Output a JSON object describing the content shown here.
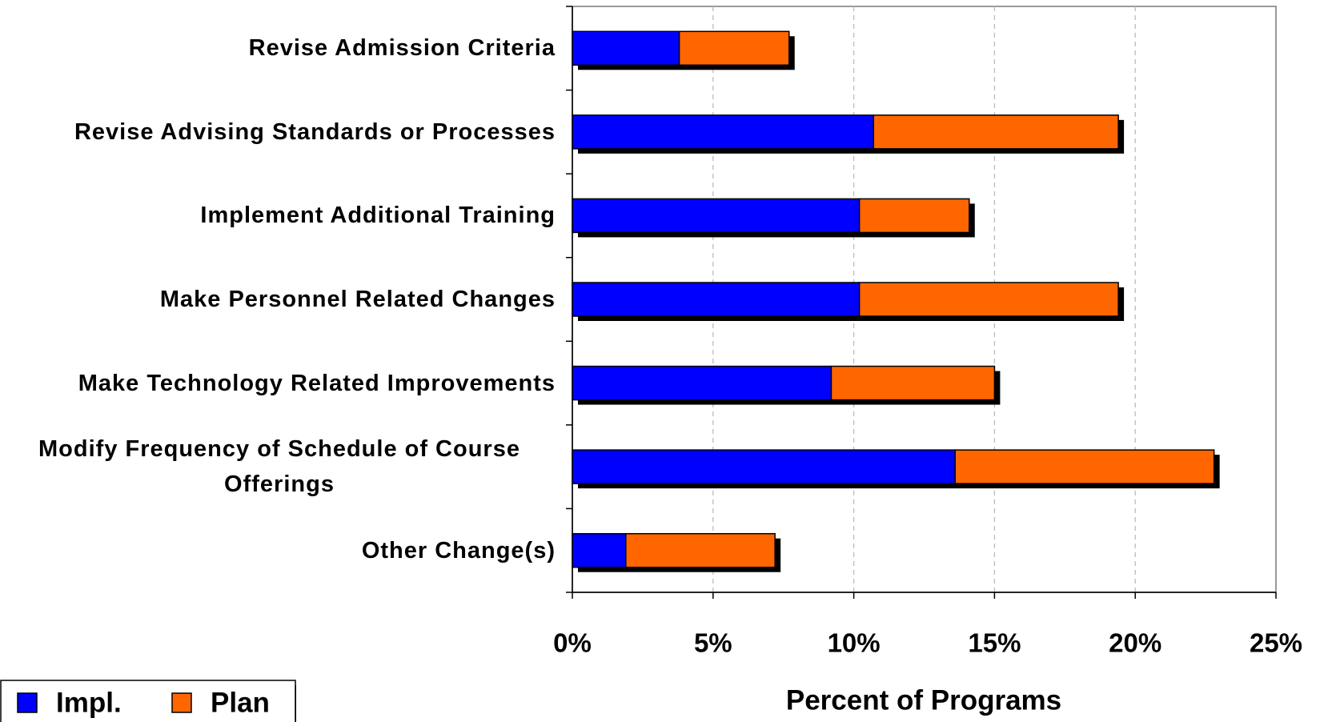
{
  "chart_data": {
    "type": "bar",
    "orientation": "horizontal",
    "stacked": true,
    "xlabel": "Percent of Programs",
    "categories": [
      "Revise Admission Criteria",
      "Revise Advising Standards or Processes",
      "Implement Additional Training",
      "Make Personnel Related Changes",
      "Make Technology Related Improvements",
      "Modify Frequency of Schedule of Course Offerings",
      "Other Change(s)"
    ],
    "series": [
      {
        "name": "Impl.",
        "color": "#0000ff",
        "values": [
          3.8,
          10.7,
          10.2,
          10.2,
          9.2,
          13.6,
          1.9
        ]
      },
      {
        "name": "Plan",
        "color": "#ff6600",
        "values": [
          3.9,
          8.7,
          3.9,
          9.2,
          5.8,
          9.2,
          5.3
        ]
      }
    ],
    "xlim": [
      0,
      25
    ],
    "xticks": [
      {
        "value": 0,
        "label": "0%"
      },
      {
        "value": 5,
        "label": "5%"
      },
      {
        "value": 10,
        "label": "10%"
      },
      {
        "value": 15,
        "label": "15%"
      },
      {
        "value": 20,
        "label": "20%"
      },
      {
        "value": 25,
        "label": "25%"
      }
    ],
    "grid": true,
    "legend": "bottom-left"
  }
}
